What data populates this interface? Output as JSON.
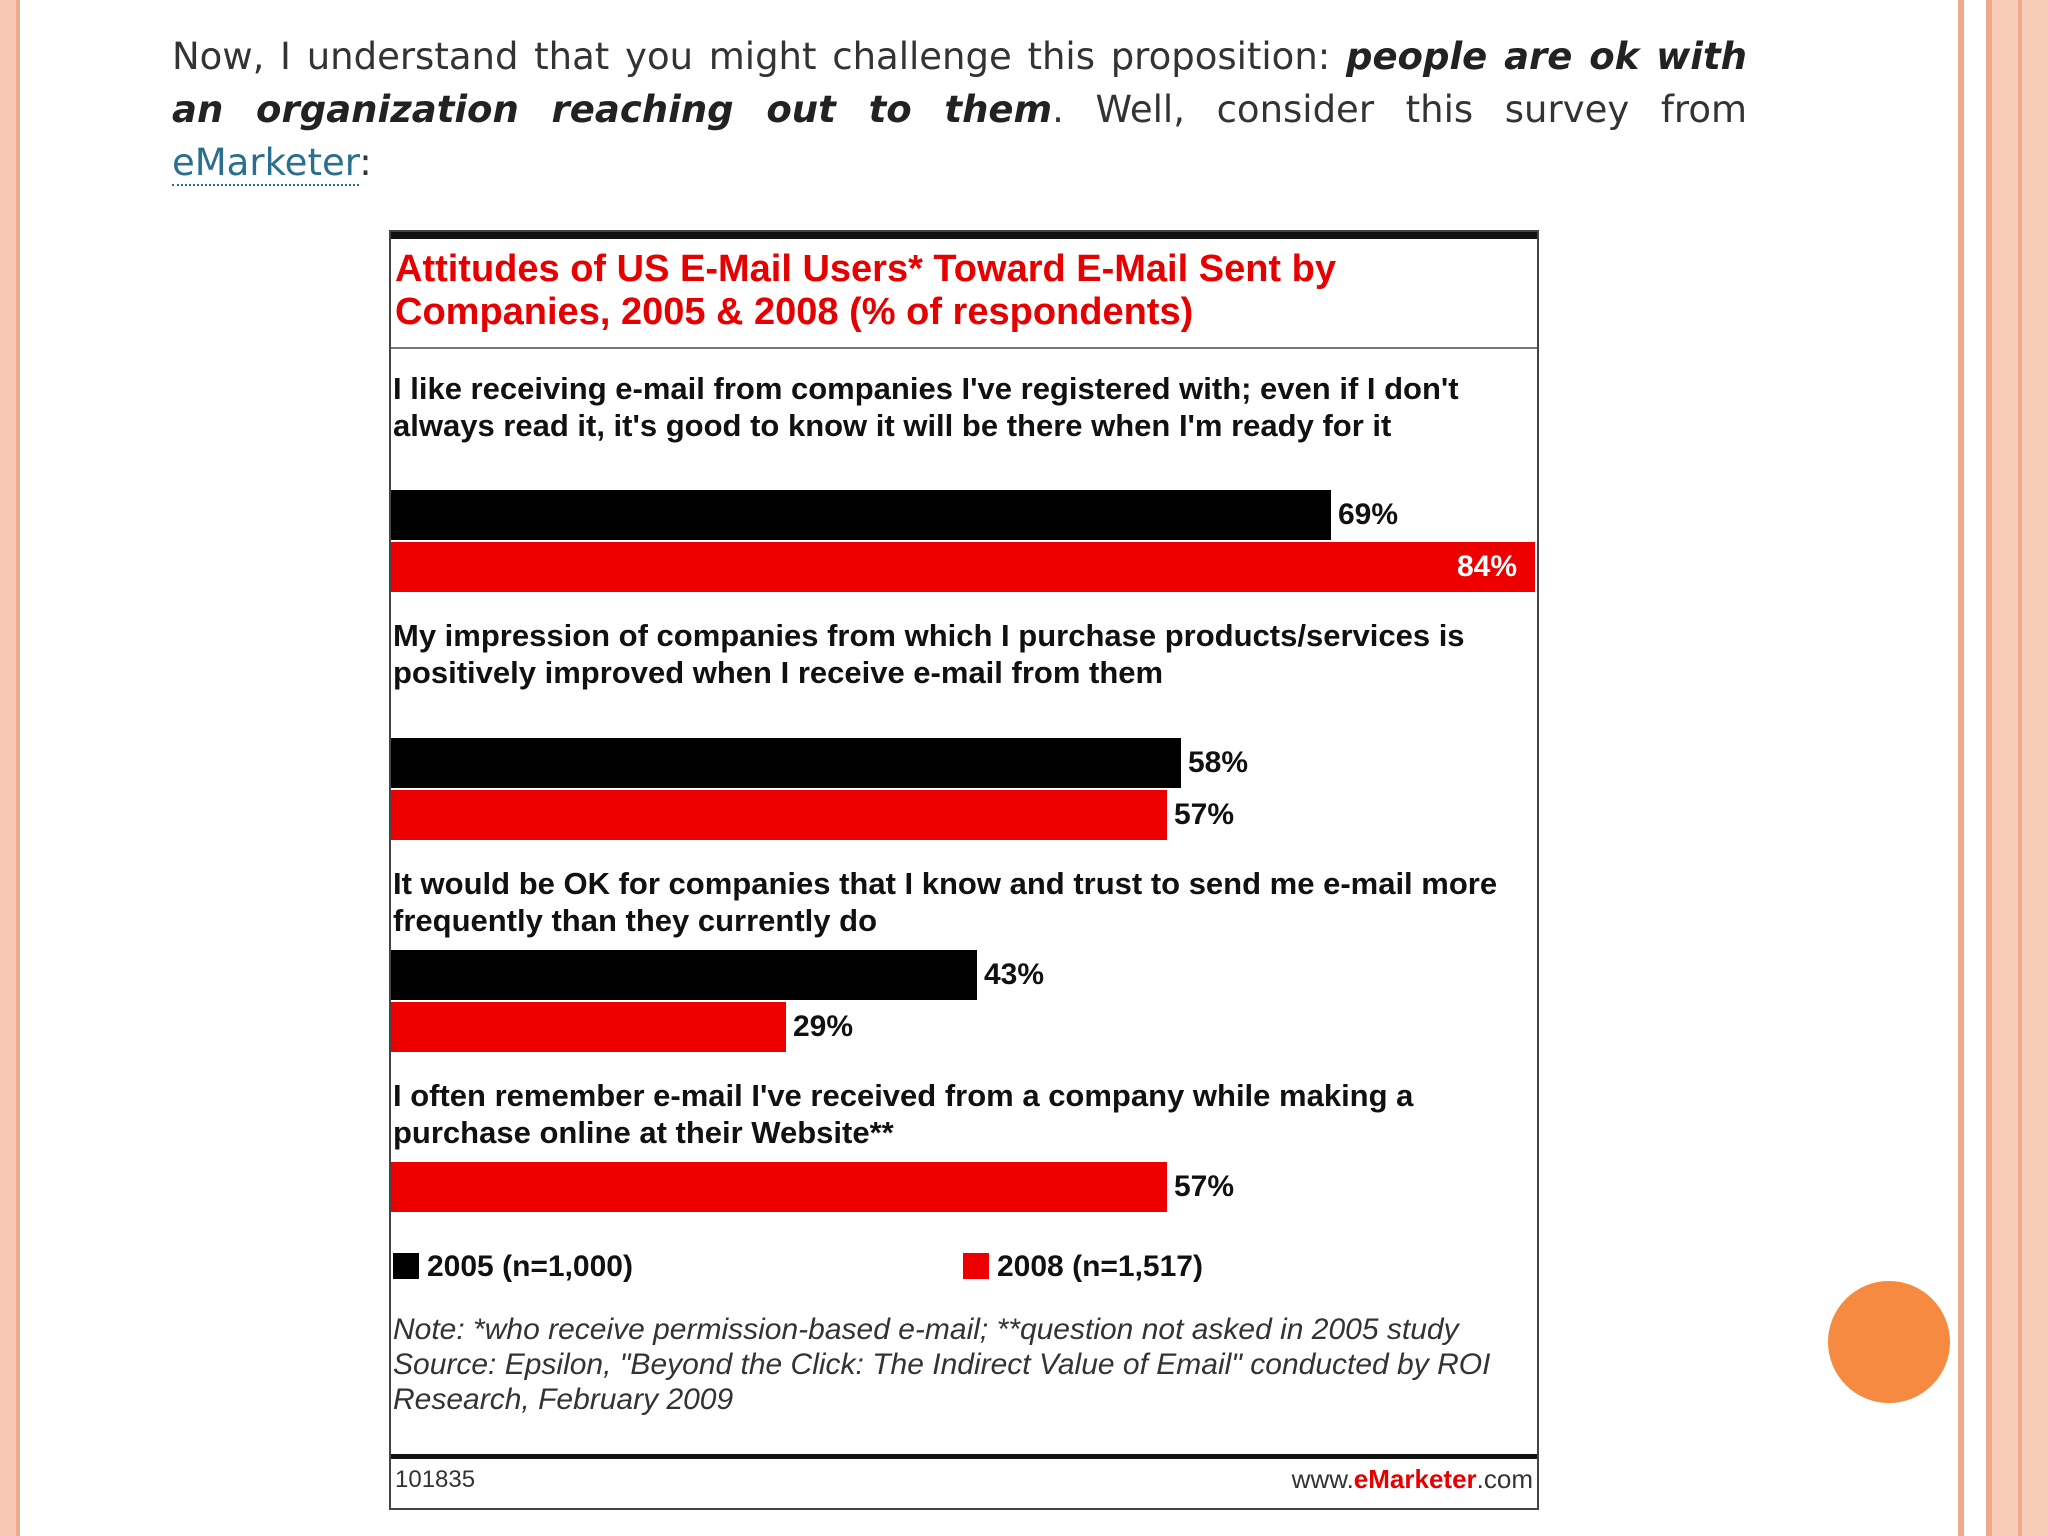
{
  "intro": {
    "text_before": "Now, I understand that you might challenge this proposition: ",
    "emphasis": "people are ok with an organization reaching out to them",
    "text_after": ". Well, consider this survey from ",
    "link": "eMarketer",
    "trailing": ":"
  },
  "colors": {
    "s2005": "#000000",
    "s2008": "#ee0000",
    "accent": "#f68a40"
  },
  "chart_data": {
    "type": "bar",
    "orientation": "horizontal",
    "title": "Attitudes of US E-Mail Users* Toward E-Mail Sent by Companies, 2005 & 2008 (% of respondents)",
    "xlim": [
      0,
      84
    ],
    "categories": [
      "I like receiving e-mail from companies I've registered with; even if I don't always read it, it's good to know it will be there when I'm ready for it",
      "My impression of companies from which I purchase products/services is positively improved when I receive e-mail from them",
      "It would be OK for companies that I know and trust to send me e-mail more frequently than they currently do",
      "I often remember e-mail I've received from a company while making a purchase online at their Website**"
    ],
    "series": [
      {
        "name": "2005 (n=1,000)",
        "values": [
          69,
          58,
          43,
          null
        ],
        "labels": [
          "69%",
          "58%",
          "43%",
          ""
        ]
      },
      {
        "name": "2008 (n=1,517)",
        "values": [
          84,
          57,
          29,
          57
        ],
        "labels": [
          "84%",
          "57%",
          "29%",
          "57%"
        ]
      }
    ],
    "legend_position": "bottom",
    "note": "Note: *who receive permission-based e-mail; **question not asked in 2005 study",
    "source": "Source: Epsilon, \"Beyond the Click: The Indirect Value of Email\" conducted by ROI Research, February 2009",
    "id": "101835",
    "site": {
      "prefix": "www.",
      "brand": "eMarketer",
      "suffix": ".com"
    }
  }
}
